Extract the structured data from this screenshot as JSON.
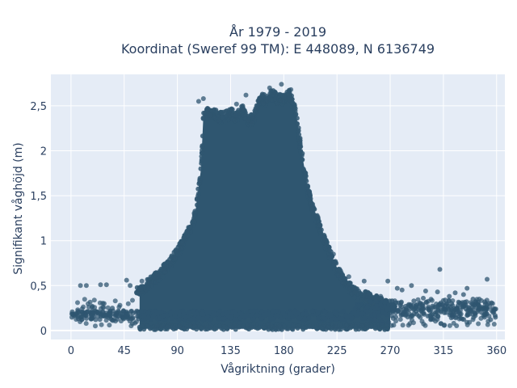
{
  "chart_data": {
    "type": "scatter",
    "title": "År 1979 - 2019",
    "subtitle": "Koordinat (Sweref 99 TM): E 448089, N 6136749",
    "xlabel": "Vågriktning (grader)",
    "ylabel": "Signifikant våghöjd (m)",
    "xlim": [
      -17,
      367
    ],
    "ylim": [
      -0.1,
      2.85
    ],
    "x_ticks": [
      0,
      45,
      90,
      135,
      180,
      225,
      270,
      315,
      360
    ],
    "x_tick_labels": [
      "0",
      "45",
      "90",
      "135",
      "180",
      "225",
      "270",
      "315",
      "360"
    ],
    "y_ticks": [
      0,
      0.5,
      1,
      1.5,
      2,
      2.5
    ],
    "y_tick_labels": [
      "0",
      "0,5",
      "1",
      "1,5",
      "2",
      "2,5"
    ],
    "grid": true,
    "legend": "none",
    "colors": {
      "marker": "#2f5670",
      "plot_bg": "#e5ecf6",
      "grid": "#ffffff",
      "text": "#2a3f5f"
    },
    "density_envelope": {
      "description": "upper edge of the dense point cloud",
      "x": [
        58,
        65,
        75,
        85,
        95,
        105,
        110,
        112,
        115,
        120,
        125,
        130,
        135,
        140,
        145,
        150,
        155,
        160,
        165,
        170,
        175,
        180,
        185,
        190,
        195,
        200,
        205,
        210,
        215,
        220,
        225,
        230,
        240,
        250,
        260,
        270
      ],
      "y": [
        0.45,
        0.55,
        0.65,
        0.8,
        1.0,
        1.3,
        1.8,
        2.4,
        2.45,
        2.45,
        2.4,
        2.4,
        2.45,
        2.4,
        2.5,
        2.35,
        2.4,
        2.6,
        2.6,
        2.65,
        2.6,
        2.6,
        2.65,
        2.45,
        2.0,
        1.6,
        1.35,
        1.2,
        1.0,
        0.85,
        0.7,
        0.6,
        0.45,
        0.4,
        0.35,
        0.3
      ]
    },
    "base_band": {
      "description": "horizontal band of points along low heights",
      "x_range": [
        0,
        360
      ],
      "y_center": 0.17,
      "spread": 0.05
    },
    "outliers": [
      {
        "x": 8,
        "y": 0.5
      },
      {
        "x": 13,
        "y": 0.5
      },
      {
        "x": 25,
        "y": 0.51
      },
      {
        "x": 30,
        "y": 0.51
      },
      {
        "x": 47,
        "y": 0.56
      },
      {
        "x": 50,
        "y": 0.5
      },
      {
        "x": 18,
        "y": 0.27
      },
      {
        "x": 28,
        "y": 0.3
      },
      {
        "x": 35,
        "y": 0.25
      },
      {
        "x": 60,
        "y": 0.55
      },
      {
        "x": 108,
        "y": 2.55
      },
      {
        "x": 112,
        "y": 2.58
      },
      {
        "x": 140,
        "y": 2.52
      },
      {
        "x": 148,
        "y": 2.62
      },
      {
        "x": 168,
        "y": 2.7
      },
      {
        "x": 178,
        "y": 2.74
      },
      {
        "x": 186,
        "y": 2.68
      },
      {
        "x": 222,
        "y": 0.85
      },
      {
        "x": 235,
        "y": 0.6
      },
      {
        "x": 248,
        "y": 0.55
      },
      {
        "x": 268,
        "y": 0.55
      },
      {
        "x": 276,
        "y": 0.47
      },
      {
        "x": 280,
        "y": 0.45
      },
      {
        "x": 288,
        "y": 0.5
      },
      {
        "x": 300,
        "y": 0.44
      },
      {
        "x": 310,
        "y": 0.43
      },
      {
        "x": 312,
        "y": 0.68
      },
      {
        "x": 320,
        "y": 0.38
      },
      {
        "x": 325,
        "y": 0.42
      },
      {
        "x": 332,
        "y": 0.4
      },
      {
        "x": 335,
        "y": 0.47
      },
      {
        "x": 340,
        "y": 0.35
      },
      {
        "x": 345,
        "y": 0.28
      },
      {
        "x": 352,
        "y": 0.57
      },
      {
        "x": 357,
        "y": 0.2
      },
      {
        "x": 355,
        "y": 0.12
      },
      {
        "x": 322,
        "y": 0.3
      },
      {
        "x": 298,
        "y": 0.36
      },
      {
        "x": 290,
        "y": 0.33
      },
      {
        "x": 262,
        "y": 0.38
      }
    ]
  }
}
